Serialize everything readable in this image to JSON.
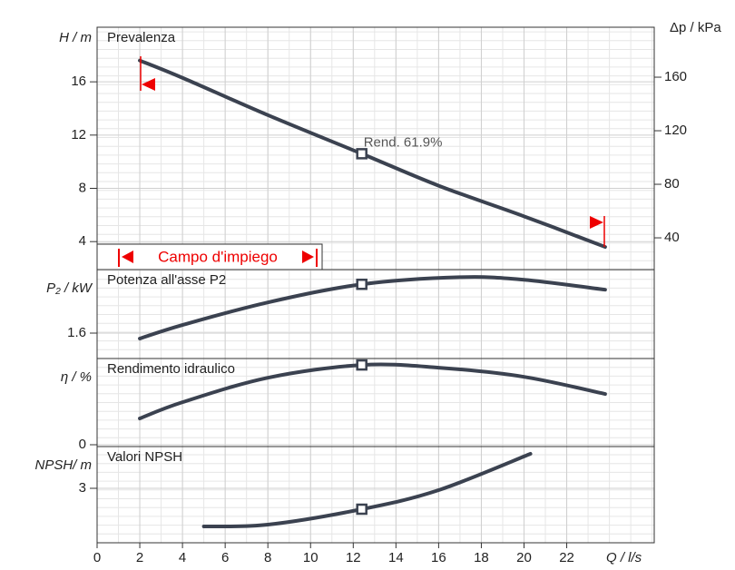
{
  "chart_data": [
    {
      "type": "line",
      "title": "Prevalenza",
      "ylabel": "H / m",
      "y2label": "Δp / kPa",
      "annotation": "Rend.  61.9%",
      "range_label": "Campo d'impiego",
      "xlim": [
        0,
        26.1
      ],
      "ylim": [
        1.9,
        20.1
      ],
      "yticks": [
        4,
        8,
        12,
        16
      ],
      "y2lim": [
        16.3,
        197.3
      ],
      "y2ticks": [
        40,
        80,
        120,
        160
      ],
      "x": [
        2,
        4,
        8,
        12.4,
        16,
        20,
        23.8
      ],
      "series": [
        {
          "color": "#3b4250",
          "values": [
            17.6,
            16.3,
            13.5,
            10.6,
            8.2,
            5.9,
            3.6
          ]
        }
      ],
      "marker": {
        "x": 12.4,
        "y": 10.6
      }
    },
    {
      "type": "line",
      "title": "Potenza all'asse P2",
      "ylabel": "P₂ / kW",
      "xlim": [
        0,
        26.1
      ],
      "ylim": [
        1.35,
        2.225
      ],
      "yticks": [
        1.6
      ],
      "x": [
        2,
        4,
        8,
        12.4,
        17,
        20,
        23.8
      ],
      "series": [
        {
          "color": "#3b4250",
          "values": [
            1.546,
            1.68,
            1.902,
            2.08,
            2.15,
            2.125,
            2.027
          ]
        }
      ],
      "marker": {
        "x": 12.4,
        "y": 2.08
      }
    },
    {
      "type": "line",
      "title": "Rendimento idraulico",
      "ylabel": "η / %",
      "xlim": [
        0,
        26.1
      ],
      "ylim": [
        -1.4,
        66.9
      ],
      "yticks": [
        0
      ],
      "x": [
        2,
        4,
        8,
        12.4,
        16,
        20,
        23.8
      ],
      "series": [
        {
          "color": "#3b4250",
          "values": [
            20.4,
            33,
            52,
            61.9,
            59.8,
            52.7,
            39.4
          ]
        }
      ],
      "marker": {
        "x": 12.4,
        "y": 61.9
      }
    },
    {
      "type": "line",
      "title": "Valori NPSH",
      "ylabel": "NPSH/ m",
      "xlabel": "Q / l/s",
      "xlim": [
        0,
        26.1
      ],
      "ylim": [
        0,
        5.3
      ],
      "yticks": [
        3
      ],
      "xticks": [
        0,
        2,
        4,
        6,
        8,
        10,
        12,
        14,
        16,
        18,
        20,
        22
      ],
      "x": [
        5,
        8,
        12.4,
        16,
        20.3
      ],
      "series": [
        {
          "color": "#3b4250",
          "values": [
            0.9,
            1.0,
            1.85,
            2.9,
            4.9
          ]
        }
      ],
      "marker": {
        "x": 12.4,
        "y": 1.85
      }
    }
  ]
}
